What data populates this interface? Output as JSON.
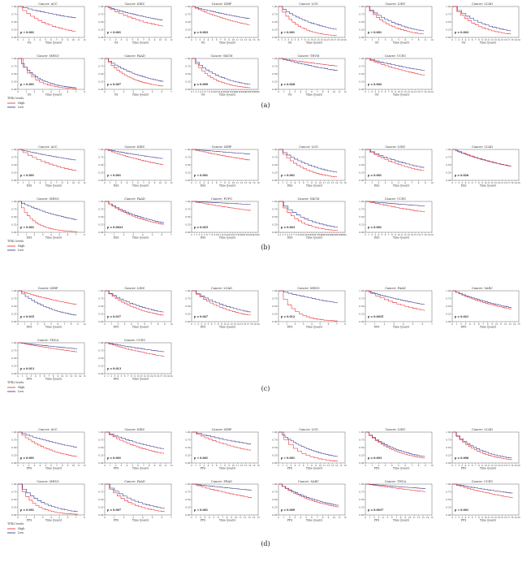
{
  "colors": {
    "high": "#e8262a",
    "low": "#2c2f86",
    "axis": "#444444",
    "text": "#333333"
  },
  "legend": {
    "title": "TFR2 levels",
    "high": "High",
    "low": "Low"
  },
  "panel_labels": [
    "(a)",
    "(b)",
    "(c)",
    "(d)"
  ],
  "chart_data": [
    {
      "type": "line",
      "panel": "(a)",
      "xlabel": "OS",
      "unit_label": "Time (years)",
      "plots": [
        {
          "title": "Cancer: ACC",
          "p": "p < 0.001",
          "xmax": 12,
          "low_end": 0.62,
          "high_end": 0.18
        },
        {
          "title": "Cancer: KIRC",
          "p": "p < 0.001",
          "xmax": 12,
          "low_end": 0.55,
          "high_end": 0.35
        },
        {
          "title": "Cancer: KIRP",
          "p": "p = 0.003",
          "xmax": 16,
          "low_end": 0.6,
          "high_end": 0.4
        },
        {
          "title": "Cancer: LGG",
          "p": "p < 0.001",
          "xmax": 20,
          "low_end": 0.25,
          "high_end": 0.05
        },
        {
          "title": "Cancer: LIHC",
          "p": "p < 0.001",
          "xmax": 10,
          "low_end": 0.2,
          "high_end": 0.1
        },
        {
          "title": "Cancer: LUAD",
          "p": "p = 0.003",
          "xmax": 20,
          "low_end": 0.2,
          "high_end": 0.1
        },
        {
          "title": "Cancer: MESO",
          "p": "p < 0.001",
          "xmax": 8,
          "low_end": 0.05,
          "high_end": 0.0
        },
        {
          "title": "Cancer: PAAD",
          "p": "p = 0.007",
          "xmax": 7,
          "low_end": 0.25,
          "high_end": 0.1
        },
        {
          "title": "Cancer: SKCM",
          "p": "p = 0.009",
          "xmax": 30,
          "low_end": 0.15,
          "high_end": 0.05
        },
        {
          "title": "Cancer: THYM",
          "p": "p = 0.028",
          "xmax": 12,
          "low_end": 0.6,
          "high_end": 0.75
        },
        {
          "title": "Cancer: UCEC",
          "p": "p = 0.002",
          "xmax": 20,
          "low_end": 0.6,
          "high_end": 0.45
        }
      ]
    },
    {
      "type": "line",
      "panel": "(b)",
      "xlabel": "DSS",
      "unit_label": "Time (years)",
      "plots": [
        {
          "title": "Cancer: ACC",
          "p": "p < 0.001",
          "xmax": 12,
          "low_end": 0.65,
          "high_end": 0.3
        },
        {
          "title": "Cancer: KIRC",
          "p": "p < 0.001",
          "xmax": 12,
          "low_end": 0.7,
          "high_end": 0.5
        },
        {
          "title": "Cancer: KIRP",
          "p": "p < 0.001",
          "xmax": 16,
          "low_end": 0.85,
          "high_end": 0.65
        },
        {
          "title": "Cancer: LGG",
          "p": "p < 0.001",
          "xmax": 16,
          "low_end": 0.25,
          "high_end": 0.1
        },
        {
          "title": "Cancer: LIHC",
          "p": "p = 0.001",
          "xmax": 10,
          "low_end": 0.4,
          "high_end": 0.3
        },
        {
          "title": "Cancer: LUAD",
          "p": "p = 0.026",
          "xmax": 20,
          "low_end": 0.45,
          "high_end": 0.45
        },
        {
          "title": "Cancer: MESO",
          "p": "p < 0.001",
          "xmax": 8,
          "low_end": 0.4,
          "high_end": 0.0
        },
        {
          "title": "Cancer: PAAD",
          "p": "p = 0.0023",
          "xmax": 7,
          "low_end": 0.3,
          "high_end": 0.25
        },
        {
          "title": "Cancer: PCPG",
          "p": "p = 0.025",
          "xmax": 26,
          "low_end": 0.9,
          "high_end": 0.7
        },
        {
          "title": "Cancer: SKCM",
          "p": "p = 0.003",
          "xmax": 30,
          "low_end": 0.15,
          "high_end": 0.05
        },
        {
          "title": "Cancer: UCEC",
          "p": "p = 0.001",
          "xmax": 20,
          "low_end": 0.85,
          "high_end": 0.65
        }
      ]
    },
    {
      "type": "line",
      "panel": "(c)",
      "xlabel": "DFS",
      "unit_label": "Time (years)",
      "plots": [
        {
          "title": "Cancer: KIRP",
          "p": "p = 0.035",
          "xmax": 10,
          "low_end": 0.2,
          "high_end": 0.55
        },
        {
          "title": "Cancer: LIHC",
          "p": "p = 0.037",
          "xmax": 10,
          "low_end": 0.3,
          "high_end": 0.2
        },
        {
          "title": "Cancer: LUAD",
          "p": "p = 0.047",
          "xmax": 20,
          "low_end": 0.3,
          "high_end": 0.2
        },
        {
          "title": "Cancer: MESO",
          "p": "p = 0.012",
          "xmax": 8,
          "low_end": 0.6,
          "high_end": 0.0
        },
        {
          "title": "Cancer: PAAD",
          "p": "p = 0.0035",
          "xmax": 7,
          "low_end": 0.55,
          "high_end": 0.35
        },
        {
          "title": "Cancer: SARC",
          "p": "p = 0.021",
          "xmax": 15,
          "low_end": 0.45,
          "high_end": 0.4
        },
        {
          "title": "Cancer: THCA",
          "p": "p = 0.013",
          "xmax": 15,
          "low_end": 0.8,
          "high_end": 0.7
        },
        {
          "title": "Cancer: UCEC",
          "p": "p = 0.013",
          "xmax": 20,
          "low_end": 0.7,
          "high_end": 0.55
        }
      ]
    },
    {
      "type": "line",
      "panel": "(d)",
      "xlabel": "PFS",
      "unit_label": "Time (years)",
      "plots": [
        {
          "title": "Cancer: ACC",
          "p": "p = 0.001",
          "xmax": 12,
          "low_end": 0.5,
          "high_end": 0.2
        },
        {
          "title": "Cancer: KIRC",
          "p": "p = 0.001",
          "xmax": 12,
          "low_end": 0.45,
          "high_end": 0.3
        },
        {
          "title": "Cancer: KIRP",
          "p": "p < 0.001",
          "xmax": 16,
          "low_end": 0.6,
          "high_end": 0.4
        },
        {
          "title": "Cancer: LGG",
          "p": "p < 0.001",
          "xmax": 16,
          "low_end": 0.2,
          "high_end": 0.05
        },
        {
          "title": "Cancer: LIHC",
          "p": "p = 0.003",
          "xmax": 10,
          "low_end": 0.2,
          "high_end": 0.15
        },
        {
          "title": "Cancer: LUAD",
          "p": "p = 0.006",
          "xmax": 20,
          "low_end": 0.15,
          "high_end": 0.1
        },
        {
          "title": "Cancer: MESO",
          "p": "p = 0.001",
          "xmax": 8,
          "low_end": 0.1,
          "high_end": 0.0
        },
        {
          "title": "Cancer: PAAD",
          "p": "p = 0.007",
          "xmax": 7,
          "low_end": 0.2,
          "high_end": 0.1
        },
        {
          "title": "Cancer: PRAD",
          "p": "p < 0.001",
          "xmax": 15,
          "low_end": 0.8,
          "high_end": 0.55
        },
        {
          "title": "Cancer: SARC",
          "p": "p = 0.009",
          "xmax": 12,
          "low_end": 0.3,
          "high_end": 0.25
        },
        {
          "title": "Cancer: THCA",
          "p": "p = 0.0037",
          "xmax": 15,
          "low_end": 0.85,
          "high_end": 0.75
        },
        {
          "title": "Cancer: UCEC",
          "p": "p < 0.001",
          "xmax": 20,
          "low_end": 0.7,
          "high_end": 0.55
        }
      ]
    }
  ]
}
